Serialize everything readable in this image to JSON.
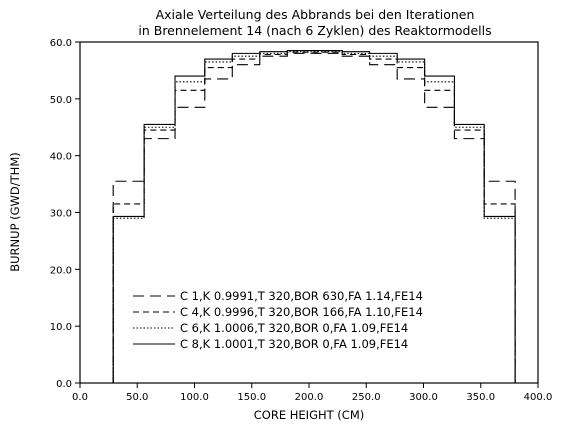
{
  "chart_data": {
    "type": "line",
    "step": true,
    "title": [
      "Axiale Verteilung des Abbrands bei den Iterationen",
      "in Brennelement 14 (nach 6 Zyklen) des Reaktormodells"
    ],
    "xlabel": "CORE HEIGHT (CM)",
    "ylabel": "BURNUP (GWD/THM)",
    "xlim": [
      0,
      400
    ],
    "ylim": [
      0,
      60
    ],
    "xticks": [
      0,
      50,
      100,
      150,
      200,
      250,
      300,
      350,
      400
    ],
    "xtick_labels": [
      "0.0",
      "50.0",
      "100.0",
      "150.0",
      "200.0",
      "250.0",
      "300.0",
      "350.0",
      "400.0"
    ],
    "yticks": [
      0,
      10,
      20,
      30,
      40,
      50,
      60
    ],
    "ytick_labels": [
      "0.0",
      "10.0",
      "20.0",
      "30.0",
      "40.0",
      "50.0",
      "60.0"
    ],
    "grid": false,
    "legend_position": "lower-center",
    "bin_edges": [
      29,
      56,
      83,
      109,
      133,
      157,
      181,
      205,
      229,
      253,
      277,
      301,
      327,
      353,
      380
    ],
    "series": [
      {
        "name": "C 1,K 0.9991,T 320,BOR   630,FA 1.14,FE14",
        "line_style": "long-dash",
        "values": [
          35.5,
          43.0,
          48.5,
          53.5,
          56.0,
          57.5,
          58.0,
          58.0,
          57.5,
          56.0,
          53.5,
          48.5,
          43.0,
          35.5
        ]
      },
      {
        "name": "C 4,K 0.9996,T 320,BOR   166,FA 1.10,FE14",
        "line_style": "dash",
        "values": [
          31.5,
          44.5,
          51.5,
          55.5,
          57.0,
          57.8,
          58.2,
          58.2,
          57.8,
          57.0,
          55.5,
          51.5,
          44.5,
          31.5
        ]
      },
      {
        "name": "C 6,K 1.0006,T 320,BOR      0,FA 1.09,FE14",
        "line_style": "dot",
        "values": [
          29.0,
          45.0,
          53.0,
          56.5,
          57.5,
          58.0,
          58.3,
          58.3,
          58.0,
          57.5,
          56.5,
          53.0,
          45.0,
          29.0
        ]
      },
      {
        "name": "C 8,K 1.0001,T 320,BOR      0,FA 1.09,FE14",
        "line_style": "solid",
        "values": [
          29.3,
          45.5,
          54.0,
          57.0,
          58.0,
          58.3,
          58.5,
          58.5,
          58.3,
          58.0,
          57.0,
          54.0,
          45.5,
          29.3
        ]
      }
    ]
  }
}
